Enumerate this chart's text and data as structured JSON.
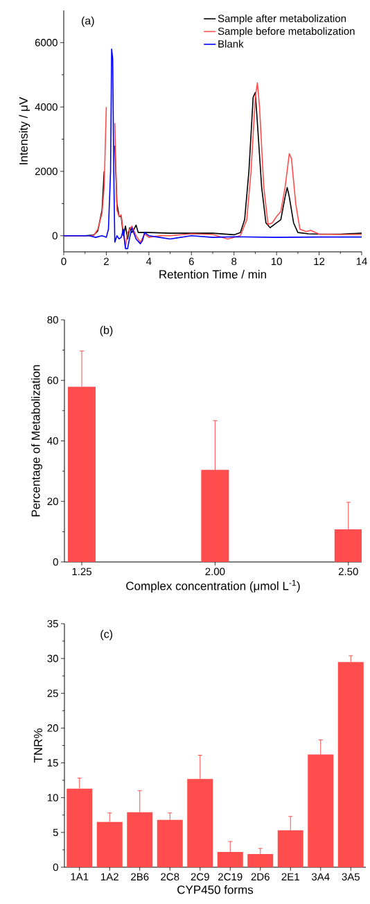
{
  "chart_data": [
    {
      "type": "line",
      "xlabel": "Retention Time / min",
      "ylabel": "Intensity / μV",
      "annotations": [
        "(a)"
      ],
      "legend": "top right",
      "xlim": [
        0,
        14
      ],
      "ylim": [
        -500,
        7000
      ],
      "xticks": [
        0,
        {
          "value": 1,
          "label": null
        },
        2,
        {
          "value": 3,
          "label": null
        },
        4,
        {
          "value": 5,
          "label": null
        },
        6,
        {
          "value": 7,
          "label": null
        },
        8,
        {
          "value": 9,
          "label": null
        },
        10,
        {
          "value": 11,
          "label": null
        },
        12,
        {
          "value": 13,
          "label": null
        },
        14
      ],
      "yticks": [
        0,
        {
          "value": 1000,
          "label": null
        },
        2000,
        {
          "value": 3000,
          "label": null
        },
        4000,
        {
          "value": 5000,
          "label": null
        },
        6000
      ],
      "series": [
        {
          "name": "Sample after metabolization",
          "color": "#000000",
          "x": [
            0,
            1.0,
            1.4,
            1.6,
            1.8,
            1.9,
            2.0,
            2.1,
            2.2,
            2.3,
            2.4,
            2.5,
            2.6,
            2.7,
            2.8,
            2.9,
            3.0,
            3.1,
            3.2,
            3.3,
            3.4,
            3.5,
            3.7,
            4.0,
            5.0,
            6.0,
            7.0,
            8.0,
            8.3,
            8.5,
            8.7,
            8.9,
            9.0,
            9.1,
            9.3,
            9.5,
            9.7,
            10.0,
            10.2,
            10.4,
            10.5,
            10.6,
            10.8,
            11.0,
            11.5,
            12.0,
            13.0,
            14.0
          ],
          "values": [
            0,
            0,
            20,
            150,
            800,
            2000,
            null,
            null,
            null,
            null,
            2800,
            1000,
            600,
            600,
            0,
            300,
            -100,
            250,
            100,
            200,
            330,
            100,
            100,
            100,
            80,
            80,
            80,
            30,
            100,
            500,
            2000,
            4300,
            4450,
            3500,
            1500,
            400,
            250,
            400,
            500,
            1200,
            1500,
            1200,
            400,
            100,
            60,
            50,
            50,
            80
          ]
        },
        {
          "name": "Sample before metabolization",
          "color": "#ff4d4d",
          "x": [
            0,
            1.4,
            1.6,
            1.8,
            1.9,
            2.0,
            2.05,
            2.35,
            2.4,
            2.5,
            2.6,
            2.7,
            2.8,
            2.9,
            3.0,
            3.2,
            3.4,
            3.6,
            3.8,
            4.0,
            4.5,
            5.0,
            6.0,
            7.0,
            7.7,
            8.0,
            8.3,
            8.6,
            8.8,
            9.0,
            9.1,
            9.2,
            9.4,
            9.6,
            9.8,
            10.0,
            10.2,
            10.4,
            10.6,
            10.7,
            10.9,
            11.1,
            11.4,
            11.6,
            12.0,
            13.0,
            14.0
          ],
          "values": [
            0,
            0,
            200,
            700,
            1500,
            4000,
            null,
            null,
            3500,
            800,
            600,
            650,
            100,
            -350,
            100,
            300,
            0,
            -200,
            50,
            -50,
            0,
            0,
            60,
            40,
            -100,
            -50,
            0,
            500,
            2000,
            4300,
            4750,
            4000,
            1500,
            350,
            400,
            600,
            750,
            1500,
            2550,
            2400,
            1000,
            200,
            130,
            170,
            50,
            40,
            40
          ]
        },
        {
          "name": "Blank",
          "color": "#0000ff",
          "x": [
            0,
            1.2,
            1.5,
            1.8,
            2.0,
            2.1,
            2.2,
            2.25,
            2.3,
            2.35,
            2.4,
            2.5,
            2.6,
            2.7,
            2.8,
            2.9,
            3.0,
            3.1,
            3.2,
            3.4,
            3.6,
            3.7,
            3.8,
            4.0,
            4.5,
            5.0,
            6.0,
            7.0,
            8.0,
            10.0,
            12.0,
            14.0
          ],
          "values": [
            0,
            0,
            -50,
            0,
            -50,
            200,
            2000,
            5800,
            5500,
            2000,
            -200,
            0,
            -100,
            -50,
            200,
            -400,
            -400,
            -50,
            250,
            -100,
            -250,
            -150,
            100,
            0,
            -50,
            -100,
            0,
            -50,
            -30,
            -50,
            -40,
            -40
          ]
        }
      ]
    },
    {
      "type": "bar",
      "xlabel": "Complex concentration (μmol L$^{-1}$)",
      "ylabel": "Percentage of Metabolization",
      "annotations": [
        "(b)"
      ],
      "categories": [
        "1.25",
        "2.00",
        "2.50"
      ],
      "values": [
        57.9,
        30.4,
        10.8
      ],
      "color": "#ff4d4d",
      "errors": [
        [
          57.9,
          69.7
        ],
        [
          30.4,
          46.7
        ],
        [
          10.8,
          19.7
        ]
      ],
      "ylim": [
        0,
        80
      ],
      "yticks": [
        0,
        {
          "value": 10,
          "label": null
        },
        20,
        {
          "value": 30,
          "label": null
        },
        40,
        {
          "value": 50,
          "label": null
        },
        60,
        {
          "value": 70,
          "label": null
        },
        80
      ]
    },
    {
      "type": "bar",
      "xlabel": "CYP450 forms",
      "ylabel": "TNR%",
      "annotations": [
        "(c)"
      ],
      "categories": [
        "1A1",
        "1A2",
        "2B6",
        "2C8",
        "2C9",
        "2C19",
        "2D6",
        "2E1",
        "3A4",
        "3A5"
      ],
      "values": [
        11.3,
        6.5,
        7.9,
        6.8,
        12.7,
        2.2,
        1.9,
        5.3,
        16.2,
        29.5
      ],
      "color": "#ff4d4d",
      "errors": [
        [
          11.3,
          12.8
        ],
        [
          6.5,
          7.8
        ],
        [
          7.9,
          11.0
        ],
        [
          6.8,
          7.8
        ],
        [
          12.7,
          16.1
        ],
        [
          2.2,
          3.7
        ],
        [
          1.9,
          2.7
        ],
        [
          5.3,
          7.3
        ],
        [
          16.2,
          18.3
        ],
        [
          29.5,
          30.4
        ]
      ],
      "ylim": [
        0,
        35
      ],
      "yticks": [
        0,
        {
          "value": 2.5,
          "label": null
        },
        5,
        {
          "value": 7.5,
          "label": null
        },
        10,
        {
          "value": 12.5,
          "label": null
        },
        15,
        {
          "value": 17.5,
          "label": null
        },
        20,
        {
          "value": 22.5,
          "label": null
        },
        25,
        {
          "value": 27.5,
          "label": null
        },
        30,
        {
          "value": 32.5,
          "label": null
        },
        35
      ]
    }
  ]
}
